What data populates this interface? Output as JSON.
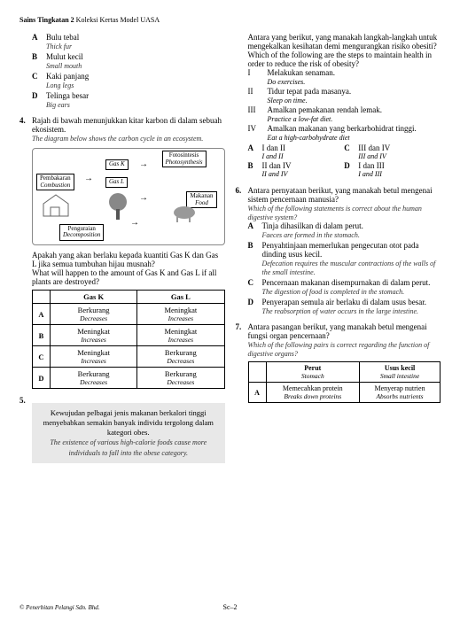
{
  "header": {
    "subject": "Sains",
    "level": "Tingkatan 2",
    "series": "Koleksi Kertas Model UASA"
  },
  "q3opts": [
    {
      "l": "A",
      "ms": "Bulu tebal",
      "en": "Thick fur"
    },
    {
      "l": "B",
      "ms": "Mulut kecil",
      "en": "Small mouth"
    },
    {
      "l": "C",
      "ms": "Kaki panjang",
      "en": "Long legs"
    },
    {
      "l": "D",
      "ms": "Telinga besar",
      "en": "Big ears"
    }
  ],
  "q4": {
    "n": "4.",
    "ms": "Rajah di bawah menunjukkan kitar karbon di dalam sebuah ekosistem.",
    "en": "The diagram below shows the carbon cycle in an ecosystem."
  },
  "diag": {
    "pembakaran": {
      "ms": "Pembakaran",
      "en": "Combustion"
    },
    "foto": {
      "ms": "Fotosintesis",
      "en": "Photosynthesis"
    },
    "gasK": "Gas K",
    "gasL": "Gas L",
    "makanan": {
      "ms": "Makanan",
      "en": "Food"
    },
    "penguraian": {
      "ms": "Penguraian",
      "en": "Decomposition"
    }
  },
  "q4b": {
    "ms": "Apakah yang akan berlaku kepada kuantiti Gas K dan Gas L jika semua tumbuhan hijau musnah?",
    "en": "What will happen to the amount of Gas K and Gas L if all plants are destroyed?"
  },
  "q4t": {
    "h1": "Gas K",
    "h2": "Gas L",
    "rows": [
      {
        "l": "A",
        "k": "Berkurang",
        "ke": "Decreases",
        "g": "Meningkat",
        "ge": "Increases"
      },
      {
        "l": "B",
        "k": "Meningkat",
        "ke": "Increases",
        "g": "Meningkat",
        "ge": "Increases"
      },
      {
        "l": "C",
        "k": "Meningkat",
        "ke": "Increases",
        "g": "Berkurang",
        "ge": "Decreases"
      },
      {
        "l": "D",
        "k": "Berkurang",
        "ke": "Decreases",
        "g": "Berkurang",
        "ge": "Decreases"
      }
    ]
  },
  "q5": {
    "n": "5.",
    "ms": "Kewujudan pelbagai jenis makanan berkalori tinggi menyebabkan semakin banyak individu tergolong dalam kategori obes.",
    "en": "The existence of various high-calorie foods cause more individuals to fall into the obese category."
  },
  "q5b": {
    "ms": "Antara yang berikut, yang manakah langkah-langkah untuk mengekalkan kesihatan demi mengurangkan risiko obesiti?",
    "en": "Which of the following are the steps to maintain health in order to reduce the risk of obesity?"
  },
  "q5rom": [
    {
      "r": "I",
      "ms": "Melakukan senaman.",
      "en": "Do exercises."
    },
    {
      "r": "II",
      "ms": "Tidur tepat pada masanya.",
      "en": "Sleep on time."
    },
    {
      "r": "III",
      "ms": "Amalkan pemakanan rendah lemak.",
      "en": "Practice a low-fat diet."
    },
    {
      "r": "IV",
      "ms": "Amalkan makanan yang berkarbohidrat tinggi.",
      "en": "Eat a high-carbohydrate diet"
    }
  ],
  "q5o": {
    "A": {
      "ms": "I dan II",
      "en": "I and II"
    },
    "B": {
      "ms": "II dan IV",
      "en": "II and IV"
    },
    "C": {
      "ms": "III dan IV",
      "en": "III and IV"
    },
    "D": {
      "ms": "I dan III",
      "en": "I and III"
    }
  },
  "q6": {
    "n": "6.",
    "ms": "Antara pernyataan berikut, yang manakah betul mengenai sistem pencernaan manusia?",
    "en": "Which of the following statements is correct about the human digestive system?"
  },
  "q6o": [
    {
      "l": "A",
      "ms": "Tinja dihasilkan di dalam perut.",
      "en": "Faeces are formed in the stomach."
    },
    {
      "l": "B",
      "ms": "Penyahtinjaan memerlukan pengecutan otot pada dinding usus kecil.",
      "en": "Defecation requires the muscular contractions of the walls of the small intestine."
    },
    {
      "l": "C",
      "ms": "Pencernaan makanan disempurnakan di dalam perut.",
      "en": "The digestion of food is completed in the stomach."
    },
    {
      "l": "D",
      "ms": "Penyerapan semula air berlaku di dalam usus besar.",
      "en": "The reabsorption of water occurs in the large intestine."
    }
  ],
  "q7": {
    "n": "7.",
    "ms": "Antara pasangan berikut, yang manakah betul mengenai fungsi organ pencernaan?",
    "en": "Which of the following pairs is correct regarding the function of digestive organs?"
  },
  "q7t": {
    "h1": {
      "ms": "Perut",
      "en": "Stomach"
    },
    "h2": {
      "ms": "Usus kecil",
      "en": "Small intestine"
    },
    "row": {
      "l": "A",
      "c1": {
        "ms": "Memecahkan protein",
        "en": "Breaks down proteins"
      },
      "c2": {
        "ms": "Menyerap nutrien",
        "en": "Absorbs nutrients"
      }
    }
  },
  "footer": "© Penerbitan Pelangi Sdn. Bhd.",
  "page": "Sc–2"
}
